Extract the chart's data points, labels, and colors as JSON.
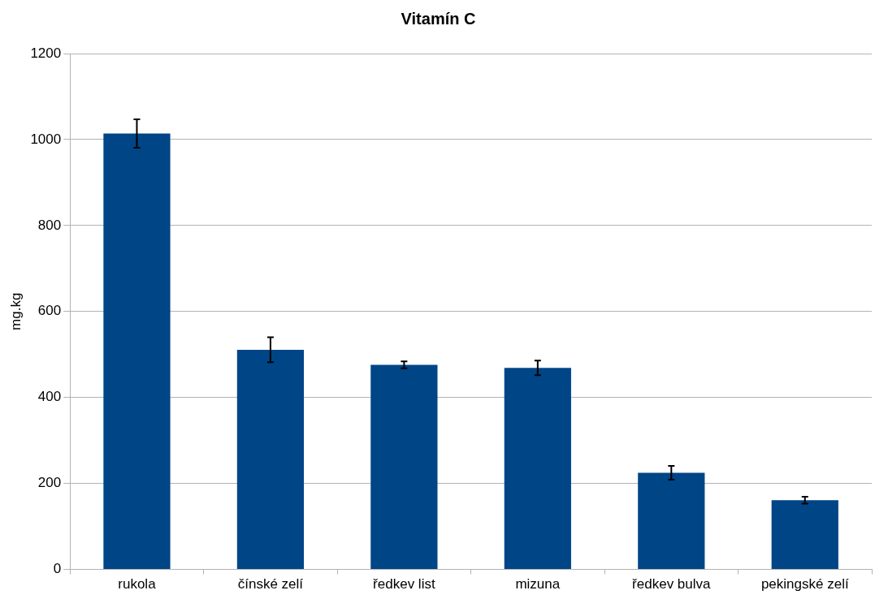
{
  "chart_data": {
    "type": "bar",
    "title": "Vitamín C",
    "ylabel": "mg.kg",
    "categories": [
      "rukola",
      "čínské zelí",
      "ředkev list",
      "mizuna",
      "ředkev bulva",
      "pekingské zelí"
    ],
    "values": [
      1014,
      511,
      476,
      469,
      225,
      161
    ],
    "errors": [
      33,
      29,
      8,
      17,
      16,
      8
    ],
    "color": "#004586",
    "ylim": [
      0,
      1200
    ],
    "yticks": [
      0,
      200,
      400,
      600,
      800,
      1000,
      1200
    ],
    "grid": "y"
  }
}
